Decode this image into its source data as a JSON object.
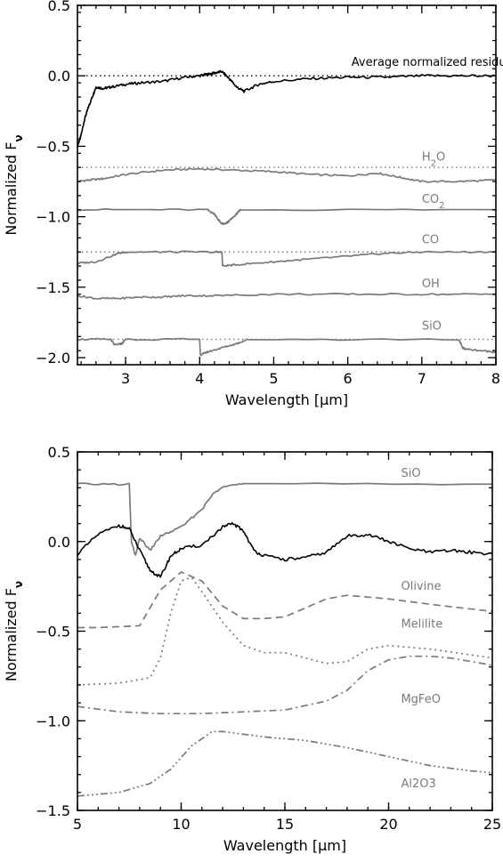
{
  "chart_data": [
    {
      "type": "line",
      "xlabel": "Wavelength [μm]",
      "ylabel": "Normalized Fν",
      "xlim": [
        2.35,
        8.0
      ],
      "ylim": [
        -2.05,
        0.5
      ],
      "xticks": [
        3,
        4,
        5,
        6,
        7,
        8
      ],
      "xtick_labels": [
        "3",
        "4",
        "5",
        "6",
        "7",
        "8"
      ],
      "yticks": [
        0.5,
        0.0,
        -0.5,
        -1.0,
        -1.5,
        -2.0
      ],
      "ytick_labels": [
        "0.5",
        "0.0",
        "−0.5",
        "−1.0",
        "−1.5",
        "−2.0"
      ],
      "grid": false,
      "baselines": [
        {
          "y": 0.0,
          "style": "dotted",
          "color": "#000000"
        },
        {
          "y": -0.65,
          "style": "dotted",
          "color": "#7a7a7a"
        },
        {
          "y": -1.25,
          "style": "dotted",
          "color": "#7a7a7a"
        },
        {
          "y": -1.87,
          "style": "dotted",
          "color": "#7a7a7a"
        }
      ],
      "series": [
        {
          "name": "Average normalized residual",
          "color": "#000000",
          "label_pos": [
            6.05,
            0.07
          ],
          "x": [
            2.35,
            2.4,
            2.45,
            2.5,
            2.55,
            2.6,
            2.7,
            2.8,
            3.0,
            3.2,
            3.5,
            3.8,
            4.0,
            4.1,
            4.2,
            4.3,
            4.4,
            4.5,
            4.6,
            4.8,
            5.0,
            5.5,
            6.0,
            6.5,
            7.0,
            7.5,
            8.0
          ],
          "y": [
            -0.5,
            -0.42,
            -0.3,
            -0.22,
            -0.15,
            -0.08,
            -0.09,
            -0.08,
            -0.06,
            -0.05,
            -0.04,
            -0.01,
            0.0,
            0.01,
            0.02,
            0.03,
            -0.02,
            -0.08,
            -0.11,
            -0.06,
            -0.04,
            -0.02,
            -0.01,
            -0.01,
            0.0,
            0.0,
            0.0
          ]
        },
        {
          "name": "H₂O",
          "color": "#7a7a7a",
          "label_pos": [
            7.0,
            -0.6
          ],
          "x": [
            2.35,
            2.5,
            2.7,
            3.0,
            3.5,
            4.0,
            4.5,
            5.0,
            5.5,
            6.0,
            6.4,
            6.7,
            7.0,
            7.5,
            8.0
          ],
          "y": [
            -0.75,
            -0.74,
            -0.73,
            -0.7,
            -0.67,
            -0.66,
            -0.67,
            -0.68,
            -0.7,
            -0.71,
            -0.69,
            -0.72,
            -0.75,
            -0.75,
            -0.74
          ]
        },
        {
          "name": "CO₂",
          "color": "#7a7a7a",
          "label_pos": [
            7.0,
            -0.9
          ],
          "x": [
            2.35,
            4.1,
            4.2,
            4.25,
            4.3,
            4.35,
            4.4,
            4.5,
            4.55,
            8.0
          ],
          "y": [
            -0.95,
            -0.95,
            -0.98,
            -1.02,
            -1.05,
            -1.05,
            -1.03,
            -0.98,
            -0.95,
            -0.95
          ]
        },
        {
          "name": "CO",
          "color": "#7a7a7a",
          "label_pos": [
            7.0,
            -1.19
          ],
          "x": [
            2.35,
            2.6,
            2.9,
            3.0,
            3.5,
            4.2,
            4.3,
            4.31,
            4.5,
            5.0,
            5.5,
            6.0,
            6.5,
            7.0,
            8.0
          ],
          "y": [
            -1.33,
            -1.32,
            -1.26,
            -1.25,
            -1.25,
            -1.25,
            -1.25,
            -1.35,
            -1.34,
            -1.32,
            -1.3,
            -1.28,
            -1.26,
            -1.25,
            -1.25
          ]
        },
        {
          "name": "OH",
          "color": "#7a7a7a",
          "label_pos": [
            7.0,
            -1.5
          ],
          "x": [
            2.35,
            2.6,
            2.9,
            3.2,
            3.5,
            3.8,
            4.2,
            5.0,
            6.0,
            7.0,
            8.0
          ],
          "y": [
            -1.56,
            -1.58,
            -1.58,
            -1.57,
            -1.57,
            -1.56,
            -1.56,
            -1.55,
            -1.55,
            -1.55,
            -1.55
          ]
        },
        {
          "name": "SiO",
          "color": "#7a7a7a",
          "label_pos": [
            7.0,
            -1.8
          ],
          "x": [
            2.35,
            2.8,
            2.85,
            2.95,
            3.0,
            4.0,
            4.01,
            4.1,
            4.3,
            4.5,
            4.65,
            7.5,
            7.55,
            7.6,
            7.8,
            8.0
          ],
          "y": [
            -1.87,
            -1.87,
            -1.91,
            -1.9,
            -1.87,
            -1.87,
            -1.98,
            -1.96,
            -1.93,
            -1.9,
            -1.87,
            -1.87,
            -1.93,
            -1.94,
            -1.95,
            -1.96
          ]
        }
      ]
    },
    {
      "type": "line",
      "xlabel": "Wavelength [μm]",
      "ylabel": "Normalized Fν",
      "xlim": [
        5,
        25
      ],
      "ylim": [
        -1.5,
        0.5
      ],
      "xticks": [
        5,
        10,
        15,
        20,
        25
      ],
      "xtick_labels": [
        "5",
        "10",
        "15",
        "20",
        "25"
      ],
      "yticks": [
        0.5,
        0.0,
        -0.5,
        -1.0,
        -1.5
      ],
      "ytick_labels": [
        "0.5",
        "0.0",
        "−0.5",
        "−1.0",
        "−1.5"
      ],
      "grid": false,
      "baselines": [],
      "series": [
        {
          "name": "SiO",
          "color": "#7a7a7a",
          "dash": "solid",
          "label_pos": [
            20.6,
            0.36
          ],
          "x": [
            5,
            7.5,
            7.6,
            7.8,
            8.0,
            8.5,
            9.0,
            10.0,
            11.0,
            11.5,
            12.0,
            13.0,
            25.0
          ],
          "y": [
            0.32,
            0.32,
            0.0,
            -0.08,
            0.02,
            -0.05,
            0.03,
            0.08,
            0.18,
            0.26,
            0.31,
            0.32,
            0.32
          ]
        },
        {
          "name": "",
          "color": "#000000",
          "dash": "solid",
          "x": [
            5,
            6.0,
            7.0,
            7.5,
            8.0,
            8.5,
            9.0,
            9.5,
            10.0,
            11.0,
            12.0,
            12.5,
            13.0,
            13.5,
            14.0,
            15.0,
            16.0,
            17.0,
            18.0,
            19.0,
            20.0,
            21.0,
            22.0,
            23.0,
            24.0,
            25.0
          ],
          "y": [
            -0.07,
            0.04,
            0.09,
            0.07,
            -0.05,
            -0.16,
            -0.2,
            -0.08,
            -0.04,
            -0.02,
            0.08,
            0.1,
            0.06,
            -0.05,
            -0.08,
            -0.1,
            -0.09,
            -0.06,
            0.03,
            0.04,
            0.0,
            -0.04,
            -0.06,
            -0.05,
            -0.06,
            -0.07
          ]
        },
        {
          "name": "Olivine",
          "color": "#7a7a7a",
          "dash": "8,5",
          "label_pos": [
            20.6,
            -0.27
          ],
          "x": [
            5,
            6.0,
            8.0,
            9.0,
            10.0,
            11.0,
            12.0,
            13.0,
            14.0,
            15.0,
            17.0,
            18.0,
            20.0,
            22.0,
            25.0
          ],
          "y": [
            -0.48,
            -0.48,
            -0.47,
            -0.27,
            -0.17,
            -0.22,
            -0.36,
            -0.43,
            -0.43,
            -0.42,
            -0.32,
            -0.3,
            -0.32,
            -0.35,
            -0.39
          ]
        },
        {
          "name": "Melilite",
          "color": "#7a7a7a",
          "dash": "2,4",
          "label_pos": [
            20.6,
            -0.48
          ],
          "x": [
            5,
            7.0,
            8.5,
            9.0,
            9.5,
            10.0,
            10.5,
            11.0,
            12.0,
            13.0,
            14.0,
            15.0,
            17.0,
            18.0,
            19.0,
            20.0,
            22.0,
            25.0
          ],
          "y": [
            -0.8,
            -0.79,
            -0.76,
            -0.65,
            -0.4,
            -0.22,
            -0.2,
            -0.28,
            -0.45,
            -0.58,
            -0.62,
            -0.62,
            -0.68,
            -0.67,
            -0.6,
            -0.58,
            -0.6,
            -0.65
          ]
        },
        {
          "name": "MgFeO",
          "color": "#7a7a7a",
          "dash": "8,4,2,4",
          "label_pos": [
            20.6,
            -0.9
          ],
          "x": [
            5,
            7.0,
            9.0,
            11.0,
            13.0,
            15.0,
            17.0,
            18.0,
            19.0,
            20.0,
            21.0,
            22.0,
            23.0,
            25.0
          ],
          "y": [
            -0.92,
            -0.95,
            -0.96,
            -0.96,
            -0.95,
            -0.94,
            -0.89,
            -0.83,
            -0.72,
            -0.66,
            -0.64,
            -0.64,
            -0.65,
            -0.69
          ]
        },
        {
          "name": "Al2O3",
          "color": "#7a7a7a",
          "dash": "8,3,2,3,2,3,2,3",
          "label_pos": [
            20.6,
            -1.37
          ],
          "x": [
            5,
            7.0,
            8.5,
            9.5,
            10.5,
            11.5,
            12.0,
            14.0,
            16.0,
            18.0,
            20.0,
            22.0,
            24.0,
            25.0
          ],
          "y": [
            -1.42,
            -1.4,
            -1.35,
            -1.27,
            -1.14,
            -1.06,
            -1.06,
            -1.09,
            -1.11,
            -1.15,
            -1.2,
            -1.25,
            -1.28,
            -1.29
          ]
        }
      ]
    }
  ]
}
